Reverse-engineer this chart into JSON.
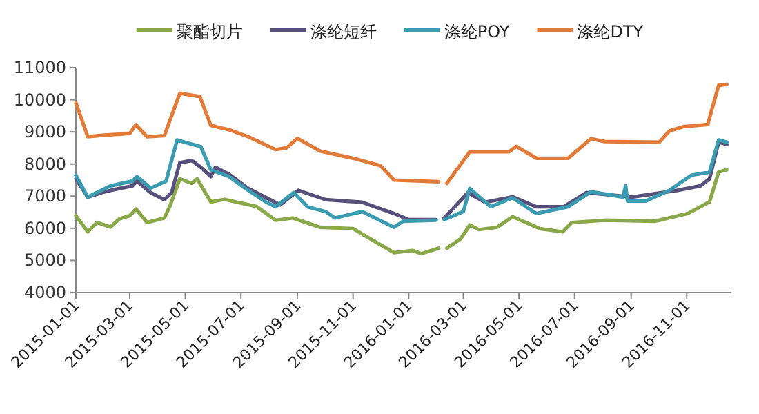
{
  "chart_data": {
    "type": "line",
    "ylim": [
      4000,
      11000
    ],
    "yticks": [
      4000,
      5000,
      6000,
      7000,
      8000,
      9000,
      10000,
      11000
    ],
    "xlim": [
      "2015-01-01",
      "2016-12-20"
    ],
    "xticks": [
      "2015-01-01",
      "2015-03-01",
      "2015-05-01",
      "2015-07-01",
      "2015-09-01",
      "2015-11-01",
      "2016-01-01",
      "2016-03-01",
      "2016-05-01",
      "2016-07-01",
      "2016-09-01",
      "2016-11-01"
    ],
    "legend": "top",
    "grid": false,
    "marker": "none",
    "line_style": "solid",
    "series": [
      {
        "name": "聚酯切片",
        "color": "#8aa84a",
        "x": [
          "2015-01-01",
          "2015-01-14",
          "2015-01-24",
          "2015-02-08",
          "2015-02-18",
          "2015-03-01",
          "2015-03-08",
          "2015-03-20",
          "2015-04-08",
          "2015-04-14",
          "2015-04-25",
          "2015-05-08",
          "2015-05-14",
          "2015-05-29",
          "2015-06-13",
          "2015-07-18",
          "2015-08-08",
          "2015-08-27",
          "2015-09-26",
          "2015-11-01",
          "2015-11-16",
          "2015-12-16",
          "2016-01-05",
          "2016-01-15",
          "2016-02-03",
          "2016-02-08",
          "2016-02-12",
          "2016-02-27",
          "2016-03-08",
          "2016-03-18",
          "2016-04-07",
          "2016-04-24",
          "2016-05-24",
          "2016-06-18",
          "2016-06-28",
          "2016-08-03",
          "2016-09-27",
          "2016-11-02",
          "2016-11-26",
          "2016-12-06",
          "2016-12-15"
        ],
        "values": [
          6390,
          5890,
          6180,
          6040,
          6300,
          6390,
          6600,
          6180,
          6320,
          6680,
          7540,
          7400,
          7540,
          6820,
          6900,
          6680,
          6250,
          6320,
          6030,
          5990,
          5740,
          5240,
          5310,
          5210,
          5380,
          null,
          5380,
          5670,
          6100,
          5960,
          6030,
          6360,
          5990,
          5890,
          6180,
          6250,
          6220,
          6460,
          6820,
          7750,
          7820
        ]
      },
      {
        "name": "涤纶短纤",
        "color": "#56507a",
        "x": [
          "2015-01-01",
          "2015-01-14",
          "2015-01-29",
          "2015-02-08",
          "2015-03-04",
          "2015-03-09",
          "2015-03-24",
          "2015-04-08",
          "2015-04-16",
          "2015-04-25",
          "2015-05-08",
          "2015-05-18",
          "2015-05-29",
          "2015-06-03",
          "2015-06-18",
          "2015-07-09",
          "2015-07-29",
          "2015-08-13",
          "2015-09-02",
          "2015-10-02",
          "2015-11-11",
          "2015-12-16",
          "2016-01-01",
          "2016-01-31",
          "2016-02-05",
          "2016-02-09",
          "2016-03-06",
          "2016-03-25",
          "2016-04-24",
          "2016-05-20",
          "2016-06-19",
          "2016-07-14",
          "2016-09-02",
          "2016-10-22",
          "2016-11-16",
          "2016-11-26",
          "2016-12-06",
          "2016-12-15"
        ],
        "values": [
          7540,
          6970,
          7110,
          7180,
          7320,
          7470,
          7110,
          6890,
          7110,
          8040,
          8110,
          7900,
          7610,
          7900,
          7680,
          7240,
          6950,
          6730,
          7180,
          6890,
          6810,
          6460,
          6270,
          6270,
          null,
          6320,
          7110,
          6810,
          6980,
          6670,
          6670,
          7110,
          6970,
          7180,
          7320,
          7540,
          8680,
          8610
        ]
      },
      {
        "name": "涤纶POY",
        "color": "#3b9bb0",
        "x": [
          "2015-01-01",
          "2015-01-14",
          "2015-01-24",
          "2015-02-08",
          "2015-03-04",
          "2015-03-09",
          "2015-03-24",
          "2015-04-10",
          "2015-04-22",
          "2015-04-30",
          "2015-05-18",
          "2015-05-29",
          "2015-06-18",
          "2015-07-09",
          "2015-07-29",
          "2015-08-08",
          "2015-08-28",
          "2015-09-12",
          "2015-10-02",
          "2015-10-12",
          "2015-11-11",
          "2015-12-16",
          "2015-12-26",
          "2016-01-31",
          "2016-02-05",
          "2016-02-09",
          "2016-03-01",
          "2016-03-08",
          "2016-03-31",
          "2016-04-24",
          "2016-05-20",
          "2016-06-24",
          "2016-07-19",
          "2016-08-23",
          "2016-08-26",
          "2016-08-28",
          "2016-09-17",
          "2016-10-13",
          "2016-11-06",
          "2016-11-26",
          "2016-12-06",
          "2016-12-15"
        ],
        "values": [
          7650,
          6970,
          7110,
          7320,
          7470,
          7610,
          7250,
          7470,
          8750,
          8680,
          8540,
          7820,
          7610,
          7180,
          6810,
          6670,
          7110,
          6670,
          6520,
          6320,
          6520,
          6030,
          6220,
          6250,
          null,
          6270,
          6520,
          7240,
          6670,
          6950,
          6460,
          6670,
          7140,
          6970,
          7320,
          6850,
          6850,
          7180,
          7650,
          7750,
          8750,
          8680
        ]
      },
      {
        "name": "涤纶DTY",
        "color": "#e07b39",
        "x": [
          "2015-01-01",
          "2015-01-14",
          "2015-02-01",
          "2015-03-01",
          "2015-03-08",
          "2015-03-20",
          "2015-04-08",
          "2015-04-25",
          "2015-05-17",
          "2015-05-29",
          "2015-06-20",
          "2015-07-09",
          "2015-08-08",
          "2015-08-20",
          "2015-09-01",
          "2015-09-26",
          "2015-11-01",
          "2015-12-01",
          "2015-12-16",
          "2016-02-03",
          "2016-02-08",
          "2016-02-12",
          "2016-03-08",
          "2016-04-20",
          "2016-04-28",
          "2016-05-20",
          "2016-06-24",
          "2016-07-19",
          "2016-08-03",
          "2016-10-02",
          "2016-10-13",
          "2016-10-28",
          "2016-11-24",
          "2016-12-06",
          "2016-12-15"
        ],
        "values": [
          9900,
          8850,
          8900,
          8950,
          9220,
          8850,
          8880,
          10200,
          10100,
          9200,
          9050,
          8850,
          8450,
          8500,
          8800,
          8400,
          8180,
          7950,
          7500,
          7450,
          null,
          7400,
          8380,
          8380,
          8550,
          8180,
          8180,
          8790,
          8700,
          8680,
          9030,
          9160,
          9230,
          10450,
          10480
        ]
      }
    ]
  }
}
